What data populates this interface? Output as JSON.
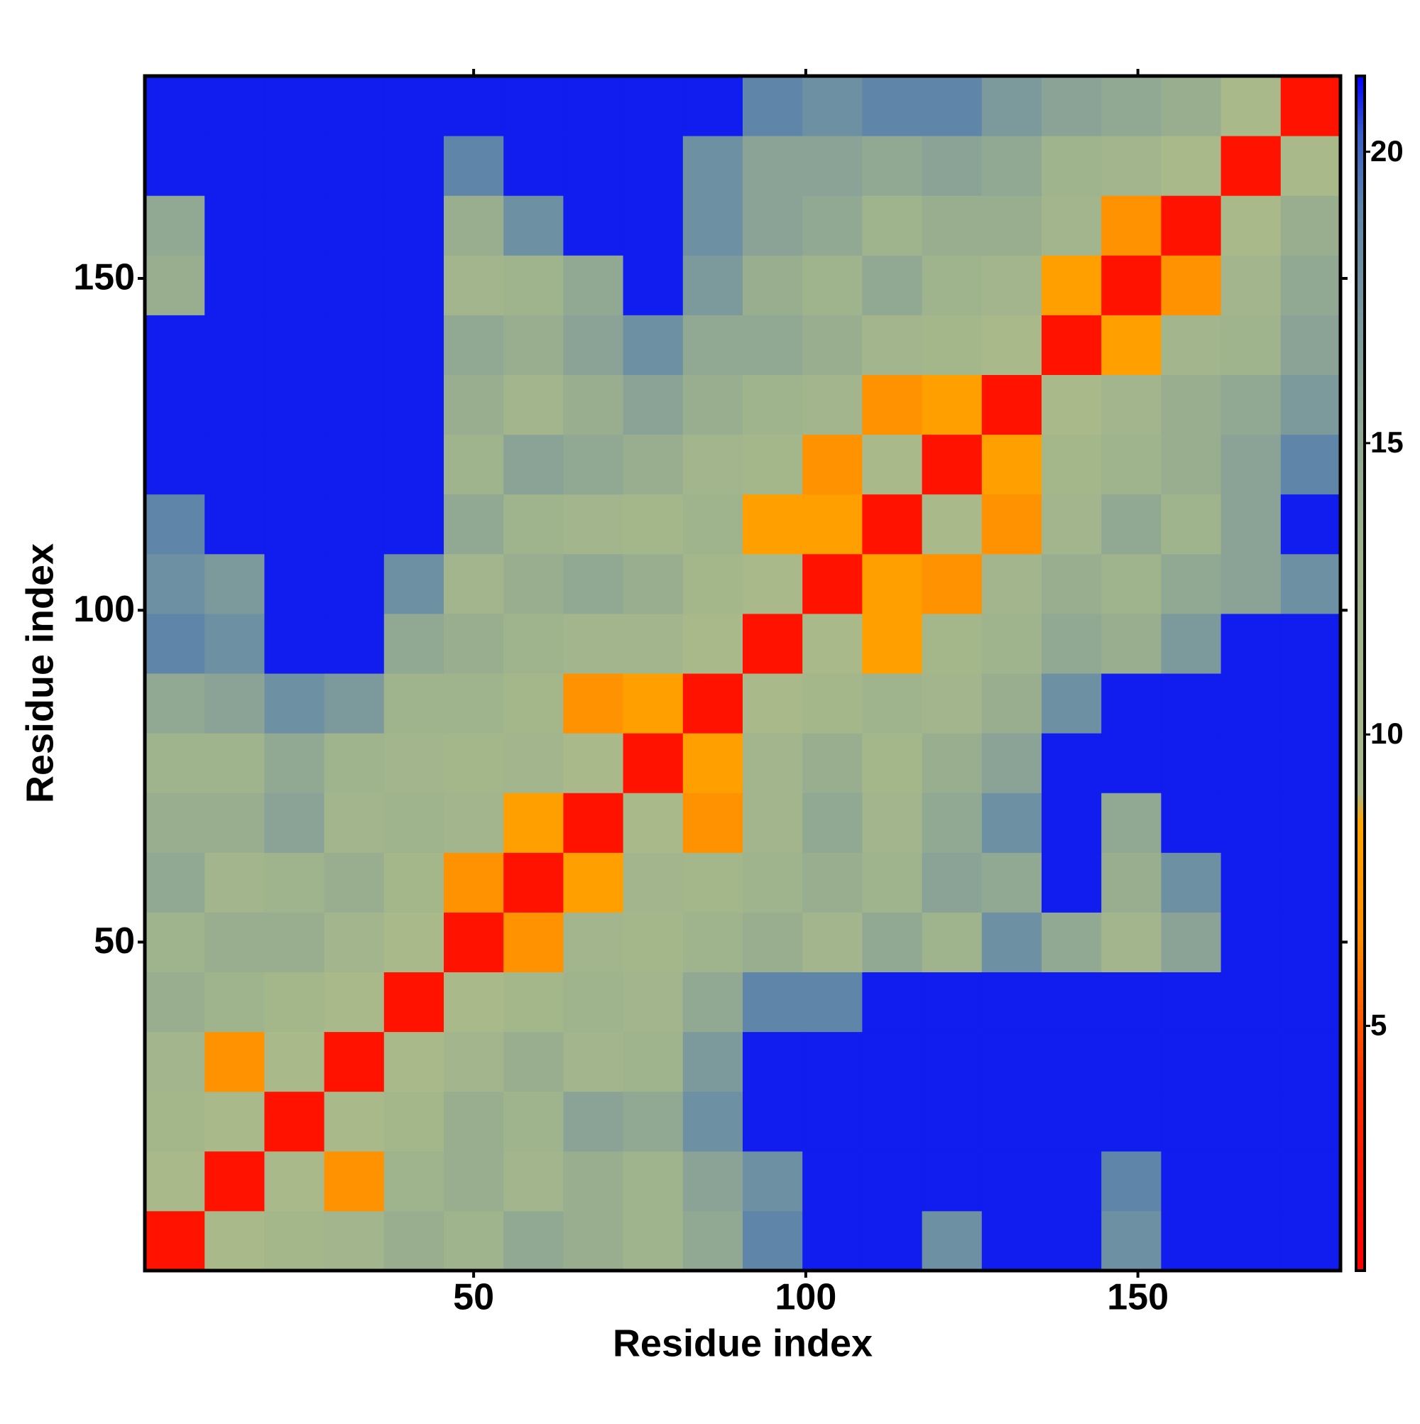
{
  "chart_data": {
    "type": "heatmap",
    "xlabel": "Residue index",
    "ylabel": "Residue index",
    "xlim": [
      0.5,
      180.5
    ],
    "ylim": [
      0.5,
      180.5
    ],
    "xticks": [
      50,
      100,
      150
    ],
    "yticks": [
      50,
      100,
      150
    ],
    "bins": [
      0.5,
      9.5,
      18.5,
      27.5,
      36.5,
      45.5,
      54.5,
      63.5,
      72.5,
      81.5,
      90.5,
      99.5,
      108.5,
      117.5,
      126.5,
      135.5,
      144.5,
      153.5,
      162.5,
      171.5,
      180.5
    ],
    "zlim": [
      0.8,
      21.3
    ],
    "zticks": [
      5,
      10,
      15,
      20
    ],
    "colorscale": [
      [
        0.8,
        "#ff0000"
      ],
      [
        4,
        "#ff3000"
      ],
      [
        6.5,
        "#ff8c00"
      ],
      [
        8.5,
        "#ffa500"
      ],
      [
        9,
        "#a9b98a"
      ],
      [
        13,
        "#9fb48c"
      ],
      [
        16,
        "#8aa396"
      ],
      [
        19,
        "#5f86a8"
      ],
      [
        20.3,
        "#3a5fc8"
      ],
      [
        21.3,
        "#0000ff"
      ]
    ],
    "z": [
      [
        2,
        9,
        11,
        12,
        14,
        13,
        15,
        14,
        13,
        15,
        19,
        21,
        21,
        18,
        21,
        21,
        18,
        21,
        21,
        21
      ],
      [
        9,
        2,
        9,
        7,
        13,
        14,
        12,
        14,
        13,
        16,
        18,
        21,
        21,
        21,
        21,
        21,
        19,
        21,
        21,
        21
      ],
      [
        11,
        9,
        2,
        9,
        11,
        14,
        13,
        16,
        15,
        18,
        21,
        21,
        21,
        21,
        21,
        21,
        21,
        21,
        21,
        21
      ],
      [
        12,
        7,
        9,
        2,
        9,
        12,
        14,
        12,
        13,
        17,
        21,
        21,
        21,
        21,
        21,
        21,
        21,
        21,
        21,
        21
      ],
      [
        14,
        13,
        11,
        9,
        2,
        9,
        11,
        13,
        12,
        15,
        19,
        19,
        21,
        21,
        21,
        21,
        21,
        21,
        21,
        21
      ],
      [
        13,
        14,
        14,
        12,
        9,
        2,
        7,
        12,
        11,
        13,
        14,
        12,
        15,
        13,
        18,
        15,
        12,
        16,
        21,
        21
      ],
      [
        15,
        12,
        13,
        14,
        11,
        7,
        2,
        8,
        12,
        11,
        13,
        14,
        13,
        16,
        15,
        21,
        14,
        18,
        21,
        21
      ],
      [
        14,
        14,
        16,
        12,
        13,
        12,
        8,
        2,
        9,
        7,
        12,
        15,
        12,
        15,
        18,
        21,
        15,
        21,
        21,
        21
      ],
      [
        13,
        13,
        15,
        13,
        12,
        11,
        12,
        9,
        2,
        8,
        12,
        14,
        11,
        14,
        16,
        21,
        21,
        21,
        21,
        21
      ],
      [
        15,
        16,
        18,
        17,
        13,
        13,
        11,
        7,
        8,
        2,
        9,
        11,
        13,
        12,
        14,
        18,
        21,
        21,
        21,
        21
      ],
      [
        19,
        18,
        21,
        21,
        15,
        14,
        13,
        12,
        12,
        9,
        2,
        9,
        8,
        11,
        13,
        15,
        14,
        17,
        21,
        21
      ],
      [
        18,
        17,
        21,
        21,
        18,
        12,
        14,
        15,
        14,
        11,
        9,
        2,
        8,
        7,
        12,
        14,
        13,
        15,
        16,
        18
      ],
      [
        19,
        21,
        21,
        21,
        21,
        15,
        13,
        12,
        11,
        13,
        8,
        8,
        2,
        9,
        7,
        12,
        15,
        13,
        16,
        21
      ],
      [
        21,
        21,
        21,
        21,
        21,
        13,
        16,
        15,
        14,
        12,
        11,
        7,
        9,
        2,
        8,
        11,
        13,
        14,
        16,
        19
      ],
      [
        21,
        21,
        21,
        21,
        21,
        14,
        12,
        14,
        16,
        14,
        13,
        12,
        7,
        8,
        2,
        9,
        12,
        14,
        15,
        17
      ],
      [
        21,
        21,
        21,
        21,
        21,
        15,
        14,
        16,
        18,
        15,
        15,
        14,
        12,
        11,
        9,
        2,
        8,
        12,
        13,
        16
      ],
      [
        14,
        21,
        21,
        21,
        21,
        12,
        13,
        15,
        21,
        17,
        14,
        13,
        15,
        13,
        12,
        8,
        2,
        7,
        12,
        15
      ],
      [
        15,
        21,
        21,
        21,
        21,
        14,
        18,
        21,
        21,
        18,
        16,
        15,
        13,
        14,
        14,
        12,
        7,
        2,
        9,
        14
      ],
      [
        21,
        21,
        21,
        21,
        21,
        19,
        21,
        21,
        21,
        18,
        16,
        16,
        15,
        16,
        15,
        13,
        12,
        9,
        2,
        9
      ],
      [
        21,
        21,
        21,
        21,
        21,
        21,
        21,
        21,
        21,
        21,
        19,
        18,
        19,
        19,
        17,
        16,
        15,
        14,
        9,
        2
      ]
    ]
  }
}
